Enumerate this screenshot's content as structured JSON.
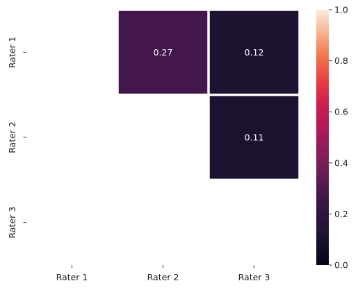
{
  "chart_data": {
    "type": "heatmap",
    "rows": [
      "Rater 1",
      "Rater 2",
      "Rater 3"
    ],
    "columns": [
      "Rater 1",
      "Rater 2",
      "Rater 3"
    ],
    "cells": [
      {
        "row": 0,
        "col": 1,
        "value": 0.27,
        "label": "0.27"
      },
      {
        "row": 0,
        "col": 2,
        "value": 0.12,
        "label": "0.12"
      },
      {
        "row": 1,
        "col": 2,
        "value": 0.11,
        "label": "0.11"
      }
    ],
    "masked": "lower triangle and diagonal (blank)",
    "colorbar": {
      "range": [
        0.0,
        1.0
      ],
      "ticks": [
        "0.0",
        "0.2",
        "0.4",
        "0.6",
        "0.8",
        "1.0"
      ],
      "colormap": "rocket"
    },
    "annotation_color": "#ffffff",
    "title": "",
    "xlabel": "",
    "ylabel": ""
  }
}
